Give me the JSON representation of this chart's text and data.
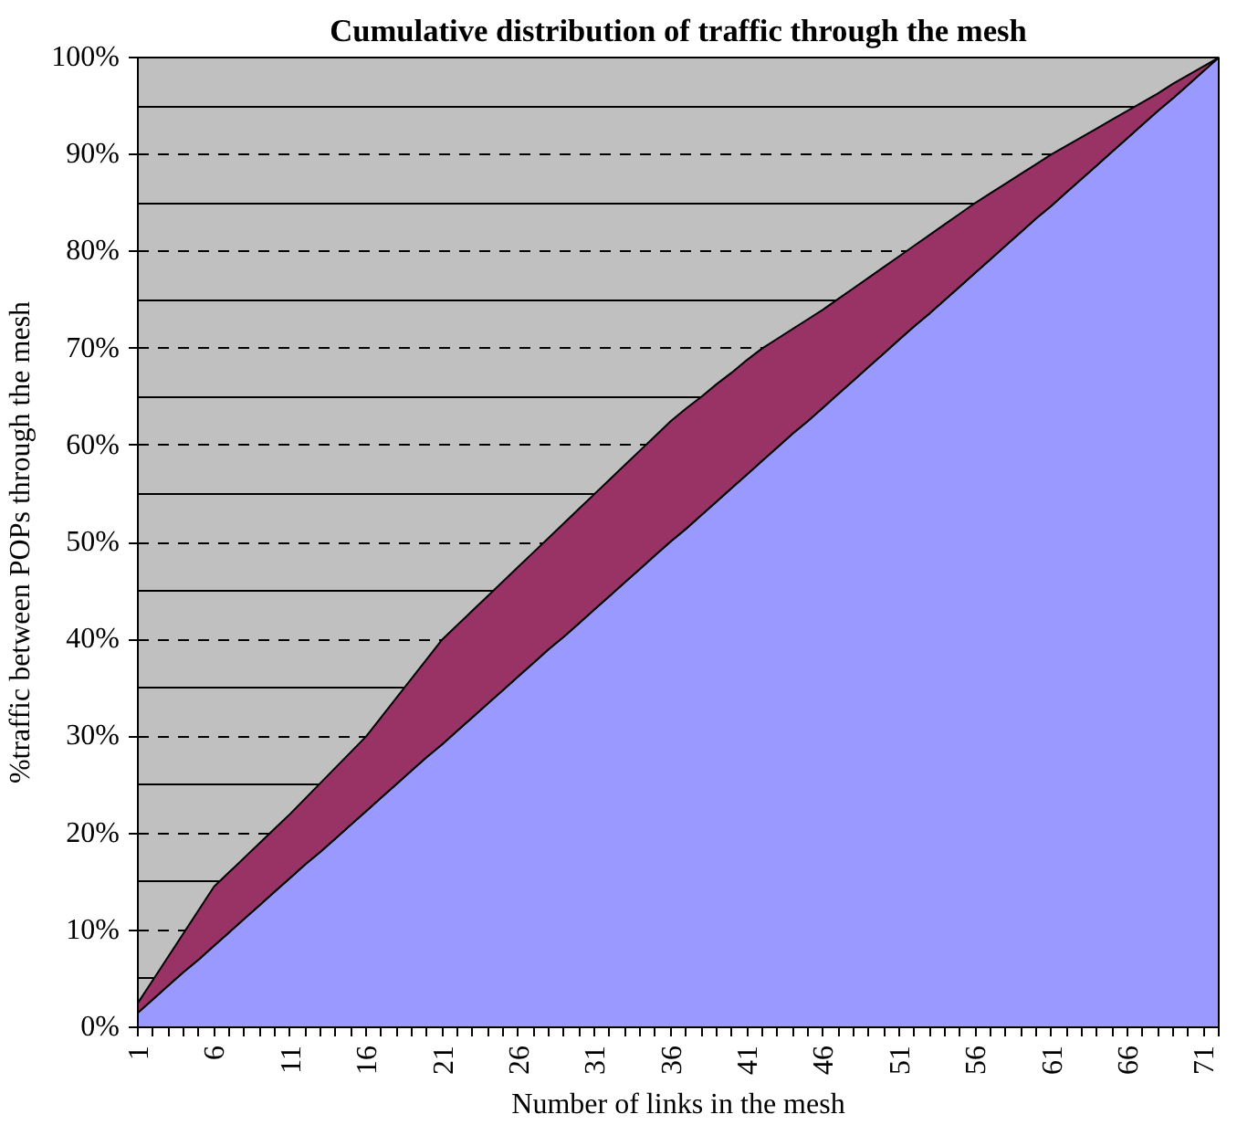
{
  "chart_data": {
    "type": "area",
    "stacked": true,
    "title": "Cumulative distribution of traffic through the mesh",
    "xlabel": "Number of links in the mesh",
    "ylabel": "%traffic between POPs through the mesh",
    "categories": [
      "1",
      null,
      null,
      null,
      null,
      "6",
      null,
      null,
      null,
      null,
      "11",
      null,
      null,
      null,
      null,
      "16",
      null,
      null,
      null,
      null,
      "21",
      null,
      null,
      null,
      null,
      "26",
      null,
      null,
      null,
      null,
      "31",
      null,
      null,
      null,
      null,
      "36",
      null,
      null,
      null,
      null,
      "41",
      null,
      null,
      null,
      null,
      "46",
      null,
      null,
      null,
      null,
      "51",
      null,
      null,
      null,
      null,
      "56",
      null,
      null,
      null,
      null,
      "61",
      null,
      null,
      null,
      null,
      "66",
      null,
      null,
      null,
      null,
      "71",
      null
    ],
    "series": [
      {
        "color": "#9999ff",
        "values": [
          1.5,
          2.9,
          4.3,
          5.7,
          7.0,
          8.4,
          9.8,
          11.2,
          12.6,
          14.0,
          15.4,
          16.8,
          18.1,
          19.5,
          20.9,
          22.3,
          23.7,
          25.1,
          26.5,
          27.9,
          29.2,
          30.6,
          32.0,
          33.4,
          34.8,
          36.2,
          37.6,
          39.0,
          40.3,
          41.7,
          43.1,
          44.5,
          45.9,
          47.3,
          48.7,
          50.1,
          51.4,
          52.8,
          54.2,
          55.6,
          57.0,
          58.4,
          59.8,
          61.2,
          62.5,
          63.9,
          65.3,
          66.7,
          68.1,
          69.5,
          70.9,
          72.3,
          73.6,
          75.0,
          76.4,
          77.8,
          79.2,
          80.6,
          82.0,
          83.4,
          84.7,
          86.1,
          87.5,
          88.9,
          90.3,
          91.7,
          93.1,
          94.5,
          95.8,
          97.2,
          98.6,
          100
        ]
      },
      {
        "color": "#993366",
        "values": [
          1.0,
          2.0,
          3.0,
          4.0,
          5.1,
          6.1,
          6.2,
          6.3,
          6.4,
          6.5,
          6.6,
          6.8,
          7.1,
          7.3,
          7.5,
          7.7,
          8.3,
          8.9,
          9.5,
          10.1,
          10.8,
          10.9,
          11.0,
          11.1,
          11.2,
          11.3,
          11.4,
          11.5,
          11.7,
          11.8,
          11.9,
          12.0,
          12.1,
          12.2,
          12.3,
          12.4,
          12.4,
          12.2,
          12.1,
          11.9,
          11.8,
          11.6,
          11.2,
          10.8,
          10.5,
          10.1,
          9.8,
          9.5,
          9.2,
          8.9,
          8.6,
          8.3,
          8.1,
          7.8,
          7.5,
          7.2,
          6.8,
          6.4,
          6.0,
          5.6,
          5.3,
          4.8,
          4.3,
          3.8,
          3.3,
          2.8,
          2.3,
          1.8,
          1.5,
          1.0,
          0.5,
          0
        ]
      }
    ],
    "ylim": [
      0,
      100
    ],
    "yticks": [
      {
        "value": 0,
        "label": "0%"
      },
      {
        "value": 5,
        "label": null
      },
      {
        "value": 10,
        "label": "10%"
      },
      {
        "value": 15,
        "label": null
      },
      {
        "value": 20,
        "label": "20%"
      },
      {
        "value": 25,
        "label": null
      },
      {
        "value": 30,
        "label": "30%"
      },
      {
        "value": 35,
        "label": null
      },
      {
        "value": 40,
        "label": "40%"
      },
      {
        "value": 45,
        "label": null
      },
      {
        "value": 50,
        "label": "50%"
      },
      {
        "value": 55,
        "label": null
      },
      {
        "value": 60,
        "label": "60%"
      },
      {
        "value": 65,
        "label": null
      },
      {
        "value": 70,
        "label": "70%"
      },
      {
        "value": 75,
        "label": null
      },
      {
        "value": 80,
        "label": "80%"
      },
      {
        "value": 85,
        "label": null
      },
      {
        "value": 90,
        "label": "90%"
      },
      {
        "value": 95,
        "label": null
      },
      {
        "value": 100,
        "label": "100%"
      }
    ],
    "grid": "y"
  }
}
